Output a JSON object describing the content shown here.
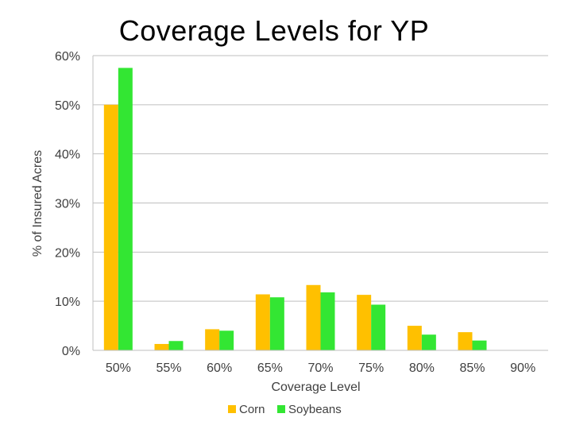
{
  "chart_data": {
    "type": "bar",
    "title": "Coverage Levels for YP",
    "xlabel": "Coverage Level",
    "ylabel": "% of Insured Acres",
    "categories": [
      "50%",
      "55%",
      "60%",
      "65%",
      "70%",
      "75%",
      "80%",
      "85%",
      "90%"
    ],
    "series": [
      {
        "name": "Corn",
        "color": "#FFC000",
        "values": [
          50,
          1.3,
          4.3,
          11.4,
          13.3,
          11.3,
          5.0,
          3.7,
          0
        ]
      },
      {
        "name": "Soybeans",
        "color": "#33E633",
        "values": [
          57.5,
          1.9,
          4.0,
          10.8,
          11.8,
          9.3,
          3.2,
          2.0,
          0
        ]
      }
    ],
    "ylim": [
      0,
      60
    ],
    "yticks": [
      "0%",
      "10%",
      "20%",
      "30%",
      "40%",
      "50%",
      "60%"
    ],
    "ytick_values": [
      0,
      10,
      20,
      30,
      40,
      50,
      60
    ],
    "grid": true,
    "legend_position": "bottom"
  }
}
